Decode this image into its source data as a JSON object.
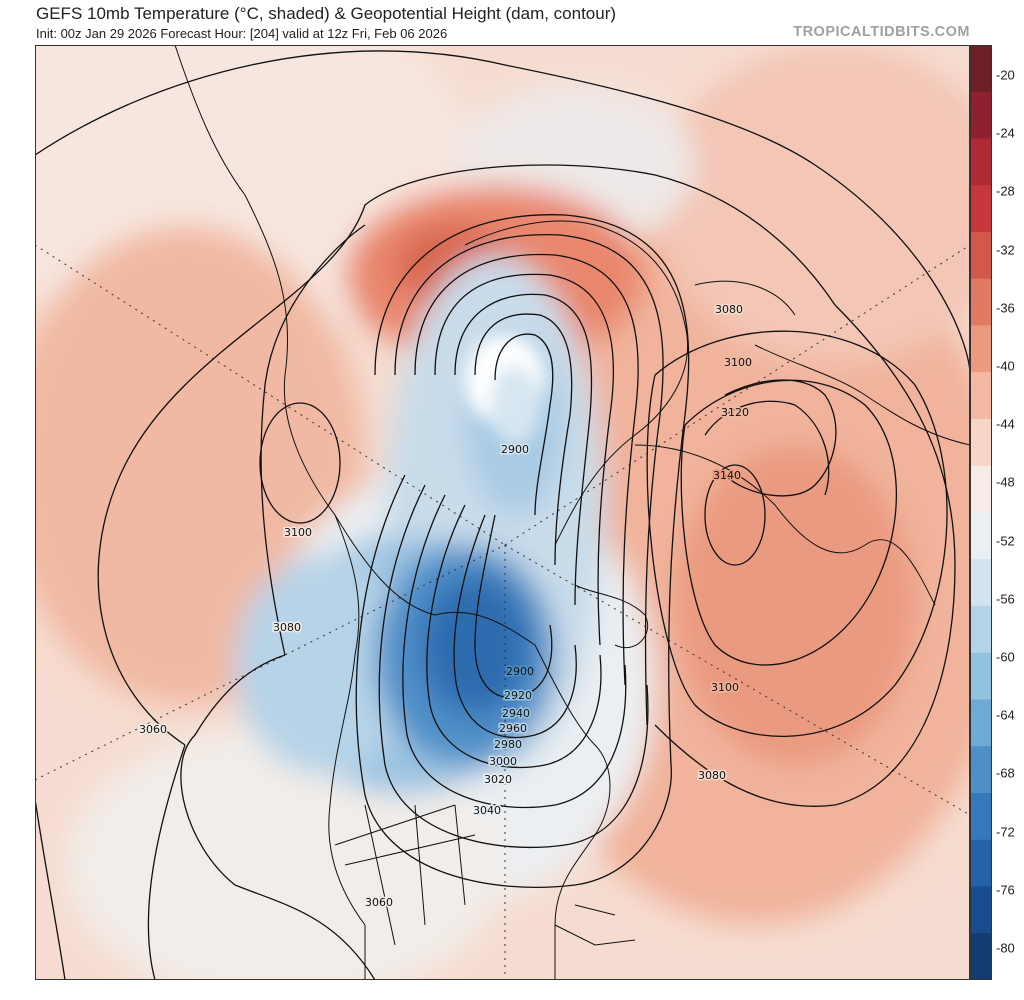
{
  "header": {
    "title": "GEFS 10mb Temperature (°C, shaded) & Geopotential Height (dam, contour)",
    "subtitle": "Init: 00z Jan 29 2026   Forecast Hour: [204]   valid at 12z Fri, Feb 06 2026",
    "brand": "TROPICALTIDBITS.COM"
  },
  "colorbar": {
    "labels": [
      "-20",
      "-24",
      "-28",
      "-32",
      "-36",
      "-40",
      "-44",
      "-48",
      "-52",
      "-56",
      "-60",
      "-64",
      "-68",
      "-72",
      "-76",
      "-80"
    ],
    "colors": [
      "#6e1f26",
      "#8e2030",
      "#b02a35",
      "#c6383c",
      "#d4574c",
      "#e07a62",
      "#eb9a80",
      "#f3b9a3",
      "#f8d5c7",
      "#f7ebe6",
      "#eaeff3",
      "#d2e3ef",
      "#b4d3e8",
      "#93c1e0",
      "#6fa9d5",
      "#4f8fc8",
      "#3778ba",
      "#2561a8",
      "#174c8f",
      "#123b72"
    ]
  },
  "map": {
    "contour_labels": {
      "northeast": [
        "3080",
        "3100",
        "3120",
        "3140",
        "3100",
        "3080"
      ],
      "pacific": [
        "3100",
        "3080",
        "3060"
      ],
      "polar": [
        "2900"
      ],
      "hudson_bay": [
        "2900",
        "2920",
        "2940",
        "2960",
        "2980",
        "3000",
        "3020",
        "3040"
      ],
      "south": [
        "3060"
      ]
    }
  }
}
